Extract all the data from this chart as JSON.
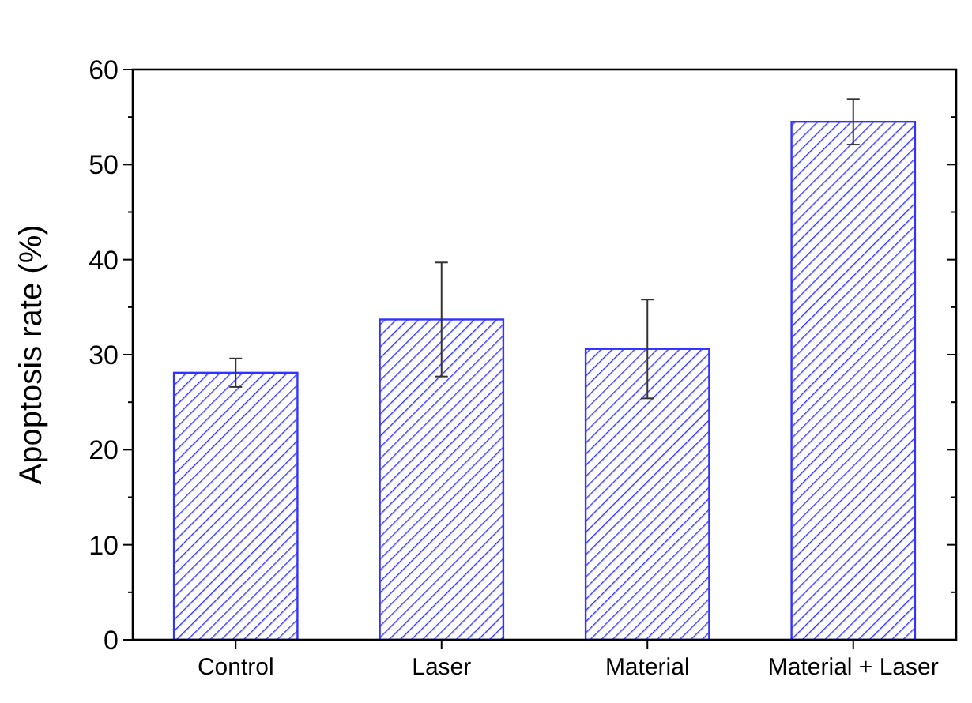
{
  "chart_data": {
    "type": "bar",
    "ylabel": "Apoptosis rate (%)",
    "categories": [
      "Control",
      "Laser",
      "Material",
      "Material + Laser"
    ],
    "values": [
      28.1,
      33.7,
      30.6,
      54.5
    ],
    "errors": [
      1.5,
      6.0,
      5.2,
      2.4
    ],
    "color": "#3333ff",
    "ylim": [
      0,
      60
    ],
    "yticks": [
      0,
      10,
      20,
      30,
      40,
      50,
      60
    ],
    "grid": false
  }
}
